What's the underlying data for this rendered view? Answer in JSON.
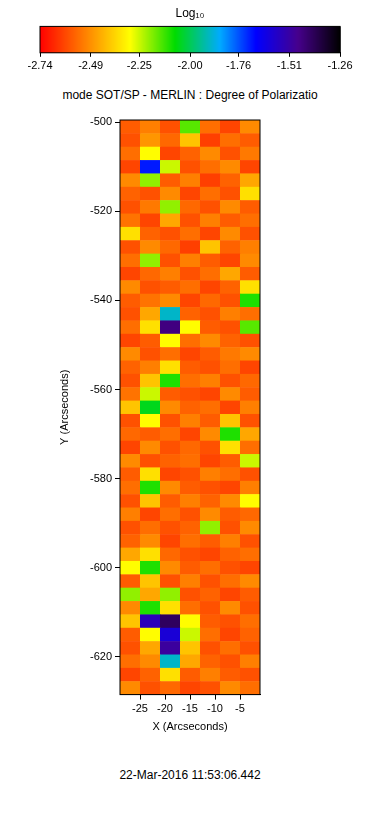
{
  "chart_data": {
    "type": "heatmap",
    "title": "mode SOT/SP - MERLIN : Degree of Polarizatio",
    "x_label": "X (Arcseconds)",
    "y_label": "Y (Arcseconds)",
    "annotations": [
      "22-Mar-2016 11:53:06.442"
    ],
    "grid": false,
    "xlim": [
      -29,
      -1
    ],
    "xticks": [
      -25,
      -20,
      -15,
      -10,
      -5
    ],
    "ylim": [
      -628.5,
      -499.5
    ],
    "yticks": [
      -620,
      -600,
      -580,
      -560,
      -540,
      -520,
      -500
    ],
    "x": [
      -27,
      -23,
      -19,
      -15,
      -11,
      -7,
      -3
    ],
    "y": [
      -501,
      -504,
      -507,
      -510,
      -513,
      -516,
      -519,
      -522,
      -525,
      -528,
      -531,
      -534,
      -537,
      -540,
      -543,
      -546,
      -549,
      -552,
      -555,
      -558,
      -561,
      -564,
      -567,
      -570,
      -573,
      -576,
      -579,
      -582,
      -585,
      -588,
      -591,
      -594,
      -597,
      -600,
      -603,
      -606,
      -609,
      -612,
      -615,
      -618,
      -621,
      -624,
      -627
    ],
    "values": [
      [
        -2.58,
        -2.52,
        -2.6,
        -2.15,
        -2.55,
        -2.62,
        -2.5
      ],
      [
        -2.6,
        -2.48,
        -2.56,
        -2.4,
        -2.63,
        -2.55,
        -2.58
      ],
      [
        -2.55,
        -2.3,
        -2.62,
        -2.57,
        -2.5,
        -2.6,
        -2.53
      ],
      [
        -2.62,
        -1.7,
        -2.25,
        -2.6,
        -2.55,
        -2.5,
        -2.62
      ],
      [
        -2.5,
        -2.2,
        -2.58,
        -2.52,
        -2.63,
        -2.57,
        -2.45
      ],
      [
        -2.57,
        -2.6,
        -2.5,
        -2.62,
        -2.55,
        -2.6,
        -2.35
      ],
      [
        -2.6,
        -2.53,
        -2.2,
        -2.56,
        -2.6,
        -2.5,
        -2.58
      ],
      [
        -2.54,
        -2.62,
        -2.45,
        -2.6,
        -2.52,
        -2.58,
        -2.55
      ],
      [
        -2.35,
        -2.57,
        -2.6,
        -2.55,
        -2.62,
        -2.5,
        -2.6
      ],
      [
        -2.6,
        -2.5,
        -2.56,
        -2.63,
        -2.4,
        -2.57,
        -2.52
      ],
      [
        -2.55,
        -2.2,
        -2.6,
        -2.52,
        -2.58,
        -2.62,
        -2.5
      ],
      [
        -2.62,
        -2.56,
        -2.52,
        -2.6,
        -2.55,
        -2.45,
        -2.58
      ],
      [
        -2.5,
        -2.6,
        -2.58,
        -2.55,
        -2.62,
        -2.57,
        -2.35
      ],
      [
        -2.58,
        -2.54,
        -2.5,
        -2.62,
        -2.56,
        -2.6,
        -2.1
      ],
      [
        -2.6,
        -2.45,
        -1.9,
        -2.57,
        -2.6,
        -2.52,
        -2.55
      ],
      [
        -2.55,
        -2.35,
        -1.45,
        -2.3,
        -2.58,
        -2.6,
        -2.15
      ],
      [
        -2.62,
        -2.58,
        -2.3,
        -2.55,
        -2.5,
        -2.57,
        -2.6
      ],
      [
        -2.5,
        -2.6,
        -2.55,
        -2.62,
        -2.58,
        -2.53,
        -2.5
      ],
      [
        -2.57,
        -2.52,
        -2.35,
        -2.58,
        -2.6,
        -2.55,
        -2.62
      ],
      [
        -2.6,
        -2.4,
        -2.1,
        -2.55,
        -2.52,
        -2.6,
        -2.56
      ],
      [
        -2.54,
        -2.25,
        -2.58,
        -2.6,
        -2.62,
        -2.5,
        -2.58
      ],
      [
        -2.4,
        -2.05,
        -2.5,
        -2.57,
        -2.55,
        -2.62,
        -2.52
      ],
      [
        -2.6,
        -2.3,
        -2.6,
        -2.52,
        -2.58,
        -2.4,
        -2.6
      ],
      [
        -2.56,
        -2.58,
        -2.55,
        -2.62,
        -2.5,
        -2.1,
        -2.45
      ],
      [
        -2.62,
        -2.5,
        -2.6,
        -2.56,
        -2.6,
        -2.35,
        -2.55
      ],
      [
        -2.5,
        -2.6,
        -2.57,
        -2.55,
        -2.62,
        -2.58,
        -2.25
      ],
      [
        -2.58,
        -2.35,
        -2.62,
        -2.6,
        -2.52,
        -2.55,
        -2.6
      ],
      [
        -2.55,
        -2.1,
        -2.5,
        -2.58,
        -2.6,
        -2.62,
        -2.52
      ],
      [
        -2.6,
        -2.4,
        -2.58,
        -2.52,
        -2.57,
        -2.5,
        -2.3
      ],
      [
        -2.52,
        -2.62,
        -2.55,
        -2.6,
        -2.5,
        -2.58,
        -2.56
      ],
      [
        -2.6,
        -2.55,
        -2.6,
        -2.57,
        -2.2,
        -2.6,
        -2.5
      ],
      [
        -2.57,
        -2.5,
        -2.62,
        -2.55,
        -2.58,
        -2.52,
        -2.6
      ],
      [
        -2.45,
        -2.35,
        -2.56,
        -2.6,
        -2.62,
        -2.57,
        -2.55
      ],
      [
        -2.3,
        -2.1,
        -2.5,
        -2.58,
        -2.55,
        -2.6,
        -2.62
      ],
      [
        -2.58,
        -2.4,
        -2.6,
        -2.52,
        -2.6,
        -2.55,
        -2.5
      ],
      [
        -2.2,
        -2.45,
        -2.2,
        -2.6,
        -2.57,
        -2.62,
        -2.58
      ],
      [
        -2.5,
        -2.1,
        -2.35,
        -2.55,
        -2.6,
        -2.5,
        -2.6
      ],
      [
        -2.4,
        -1.55,
        -1.4,
        -2.3,
        -2.58,
        -2.6,
        -2.55
      ],
      [
        -2.58,
        -2.3,
        -1.6,
        -2.25,
        -2.55,
        -2.62,
        -2.57
      ],
      [
        -2.6,
        -2.45,
        -1.5,
        -2.4,
        -2.6,
        -2.55,
        -2.6
      ],
      [
        -2.55,
        -2.5,
        -1.9,
        -2.45,
        -2.57,
        -2.6,
        -2.52
      ],
      [
        -2.62,
        -2.57,
        -2.35,
        -2.58,
        -2.52,
        -2.58,
        -2.6
      ],
      [
        -2.5,
        -2.6,
        -2.56,
        -2.62,
        -2.6,
        -2.5,
        -2.55
      ]
    ],
    "colorbar": {
      "title": "Log₁₀",
      "lim": [
        -2.74,
        -1.26
      ],
      "ticks": [
        -2.74,
        -2.49,
        -2.25,
        {
          "value": -2,
          "label": "-2.00"
        },
        -1.76,
        -1.51,
        -1.26
      ]
    }
  }
}
